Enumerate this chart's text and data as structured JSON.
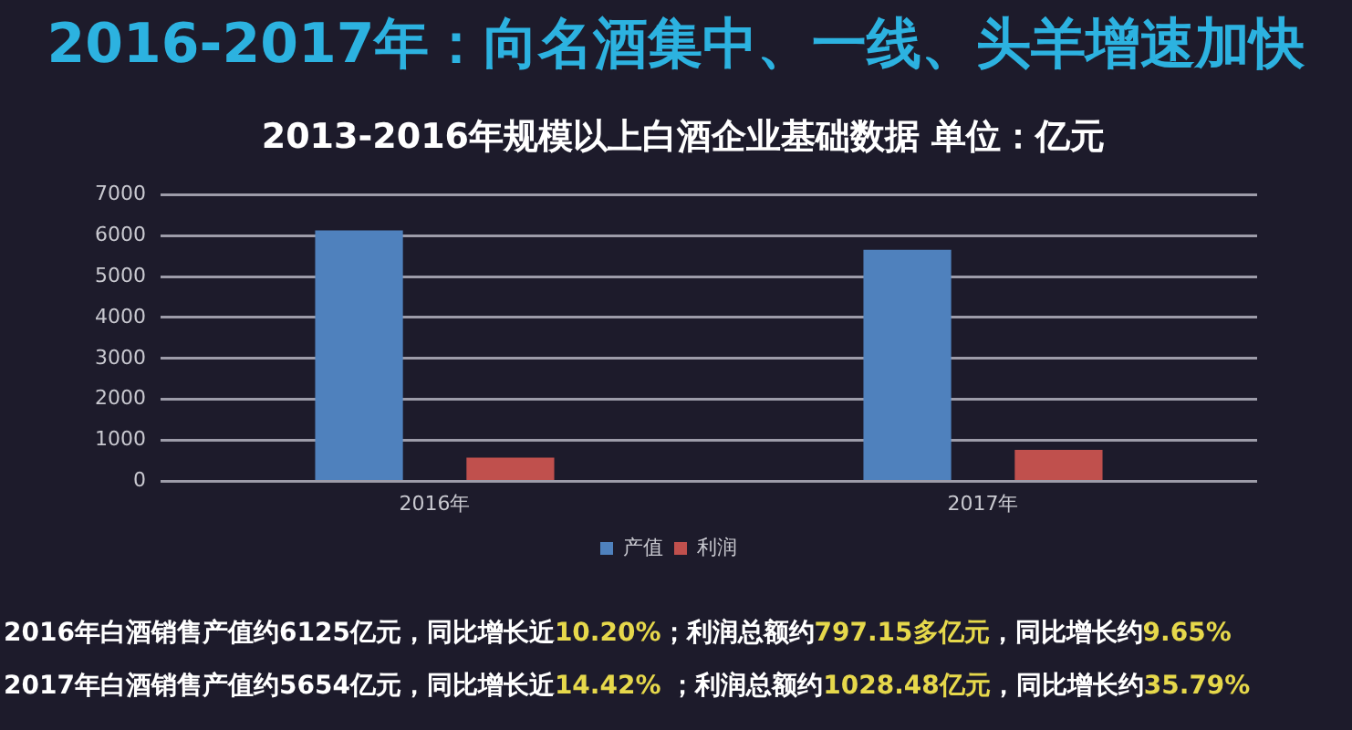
{
  "chart_data": {
    "type": "bar",
    "title": "2016-2017年：向名酒集中、一线、头羊增速加快",
    "subtitle": "2013-2016年规模以上白酒企业基础数据 单位：亿元",
    "categories": [
      "2016年",
      "2017年"
    ],
    "series": [
      {
        "name": "产值",
        "color": "#4f81bd",
        "values": [
          6125,
          5654
        ]
      },
      {
        "name": "利润",
        "color": "#c0504d",
        "values": [
          580,
          770
        ]
      }
    ],
    "ylim": [
      0,
      7000
    ],
    "yticks": [
      0,
      1000,
      2000,
      3000,
      4000,
      5000,
      6000,
      7000
    ],
    "grid": "y",
    "legend": "bottom",
    "annotations": [
      "2016年白酒销售产值约6125亿元，同比增长近10.20%；利润总额约797.15多亿元，同比增长约9.65%",
      "2017年白酒销售产值约5654亿元，同比增长近14.42% ；利润总额约1028.48亿元，同比增长约35.79%"
    ]
  }
}
